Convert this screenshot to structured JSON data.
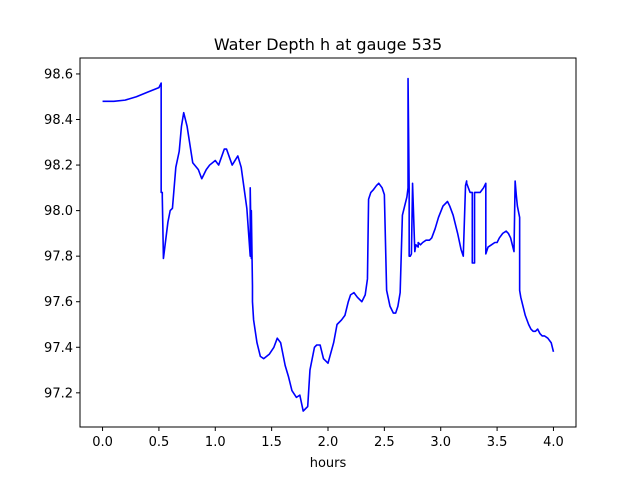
{
  "chart_data": {
    "type": "line",
    "title": "Water Depth h at gauge 535",
    "xlabel": "hours",
    "ylabel": "",
    "xlim": [
      -0.2,
      4.2
    ],
    "ylim": [
      97.05,
      98.67
    ],
    "xticks": [
      0.0,
      0.5,
      1.0,
      1.5,
      2.0,
      2.5,
      3.0,
      3.5,
      4.0
    ],
    "xtick_labels": [
      "0.0",
      "0.5",
      "1.0",
      "1.5",
      "2.0",
      "2.5",
      "3.0",
      "3.5",
      "4.0"
    ],
    "yticks": [
      97.2,
      97.4,
      97.6,
      97.8,
      98.0,
      98.2,
      98.4,
      98.6
    ],
    "ytick_labels": [
      "97.2",
      "97.4",
      "97.6",
      "97.8",
      "98.0",
      "98.2",
      "98.4",
      "98.6"
    ],
    "grid": false,
    "series": [
      {
        "color": "#0000ff",
        "x": [
          0.0,
          0.1,
          0.2,
          0.3,
          0.4,
          0.45,
          0.5,
          0.52,
          0.52,
          0.53,
          0.53,
          0.54,
          0.55,
          0.58,
          0.6,
          0.62,
          0.65,
          0.68,
          0.7,
          0.72,
          0.75,
          0.8,
          0.85,
          0.88,
          0.92,
          0.95,
          1.0,
          1.03,
          1.08,
          1.1,
          1.15,
          1.2,
          1.23,
          1.28,
          1.31,
          1.31,
          1.32,
          1.32,
          1.33,
          1.33,
          1.34,
          1.37,
          1.4,
          1.43,
          1.48,
          1.52,
          1.55,
          1.58,
          1.62,
          1.65,
          1.68,
          1.72,
          1.75,
          1.78,
          1.82,
          1.84,
          1.88,
          1.9,
          1.93,
          1.96,
          2.0,
          2.05,
          2.08,
          2.12,
          2.15,
          2.18,
          2.2,
          2.23,
          2.26,
          2.3,
          2.33,
          2.35,
          2.36,
          2.38,
          2.4,
          2.43,
          2.45,
          2.48,
          2.5,
          2.52,
          2.55,
          2.58,
          2.6,
          2.62,
          2.64,
          2.66,
          2.68,
          2.7,
          2.71,
          2.71,
          2.72,
          2.72,
          2.73,
          2.74,
          2.75,
          2.75,
          2.77,
          2.78,
          2.8,
          2.8,
          2.82,
          2.84,
          2.87,
          2.9,
          2.92,
          2.95,
          2.98,
          3.02,
          3.06,
          3.08,
          3.11,
          3.15,
          3.18,
          3.2,
          3.22,
          3.23,
          3.23,
          3.26,
          3.28,
          3.28,
          3.3,
          3.3,
          3.32,
          3.35,
          3.38,
          3.4,
          3.4,
          3.42,
          3.45,
          3.48,
          3.5,
          3.52,
          3.55,
          3.58,
          3.6,
          3.62,
          3.63,
          3.65,
          3.66,
          3.67,
          3.68,
          3.7,
          3.7,
          3.71,
          3.75,
          3.78,
          3.8,
          3.82,
          3.84,
          3.86,
          3.88,
          3.9,
          3.92,
          3.95,
          3.98,
          4.0
        ],
        "y": [
          98.48,
          98.48,
          98.485,
          98.5,
          98.52,
          98.53,
          98.54,
          98.56,
          98.08,
          98.08,
          98.06,
          97.79,
          97.83,
          97.95,
          98.0,
          98.01,
          98.19,
          98.26,
          98.37,
          98.43,
          98.37,
          98.21,
          98.18,
          98.14,
          98.18,
          98.2,
          98.22,
          98.2,
          98.27,
          98.27,
          98.2,
          98.24,
          98.19,
          98.01,
          97.8,
          98.1,
          97.79,
          98.0,
          97.67,
          97.6,
          97.52,
          97.42,
          97.36,
          97.35,
          97.37,
          97.4,
          97.44,
          97.42,
          97.32,
          97.27,
          97.21,
          97.18,
          97.19,
          97.12,
          97.14,
          97.3,
          97.4,
          97.41,
          97.41,
          97.35,
          97.33,
          97.42,
          97.5,
          97.52,
          97.54,
          97.6,
          97.63,
          97.64,
          97.62,
          97.6,
          97.63,
          97.7,
          98.05,
          98.08,
          98.09,
          98.11,
          98.12,
          98.1,
          98.07,
          97.65,
          97.58,
          97.55,
          97.55,
          97.58,
          97.64,
          97.98,
          98.02,
          98.06,
          98.1,
          98.58,
          98.1,
          97.8,
          97.8,
          97.81,
          98.11,
          98.12,
          97.82,
          97.85,
          97.84,
          97.86,
          97.85,
          97.86,
          97.87,
          97.87,
          97.88,
          97.92,
          97.97,
          98.02,
          98.04,
          98.02,
          97.98,
          97.9,
          97.83,
          97.8,
          98.11,
          98.13,
          98.12,
          98.08,
          98.08,
          97.77,
          97.77,
          98.08,
          98.08,
          98.08,
          98.1,
          98.12,
          97.81,
          97.84,
          97.85,
          97.86,
          97.86,
          97.88,
          97.9,
          97.91,
          97.9,
          97.88,
          97.86,
          97.82,
          98.13,
          98.07,
          98.02,
          97.97,
          97.65,
          97.62,
          97.54,
          97.5,
          97.48,
          97.47,
          97.47,
          97.48,
          97.46,
          97.45,
          97.45,
          97.44,
          97.42,
          97.38
        ]
      }
    ]
  }
}
